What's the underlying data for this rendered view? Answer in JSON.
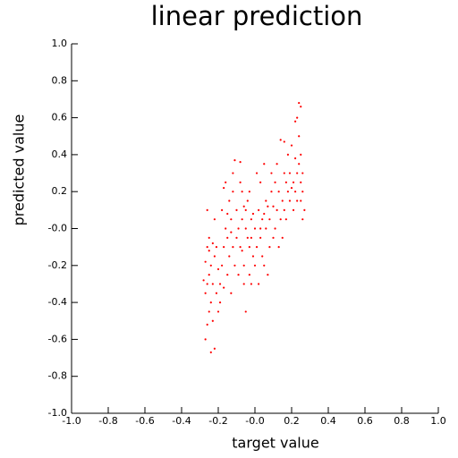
{
  "chart_data": {
    "type": "scatter",
    "title": "linear prediction",
    "xlabel": "target value",
    "ylabel": "predicted value",
    "color": "#ff0000",
    "xlim": [
      -1.0,
      1.0
    ],
    "ylim": [
      -1.0,
      1.0
    ],
    "xticks": [
      {
        "value": -1.0,
        "label": "-1.0"
      },
      {
        "value": -0.8,
        "label": "-0.8"
      },
      {
        "value": -0.6,
        "label": "-0.6"
      },
      {
        "value": -0.4,
        "label": "-0.4"
      },
      {
        "value": -0.2,
        "label": "-0.2"
      },
      {
        "value": 0,
        "label": "-0.0"
      },
      {
        "value": 0.2,
        "label": "0.2"
      },
      {
        "value": 0.4,
        "label": "0.4"
      },
      {
        "value": 0.6,
        "label": "0.6"
      },
      {
        "value": 0.8,
        "label": "0.8"
      },
      {
        "value": 1.0,
        "label": "1.0"
      }
    ],
    "yticks": [
      {
        "value": -1.0,
        "label": "-1.0"
      },
      {
        "value": -0.8,
        "label": "-0.8"
      },
      {
        "value": -0.6,
        "label": "-0.6"
      },
      {
        "value": -0.4,
        "label": "-0.4"
      },
      {
        "value": -0.2,
        "label": "-0.2"
      },
      {
        "value": 0,
        "label": "-0.0"
      },
      {
        "value": 0.2,
        "label": "0.2"
      },
      {
        "value": 0.4,
        "label": "0.4"
      },
      {
        "value": 0.6,
        "label": "0.6"
      },
      {
        "value": 0.8,
        "label": "0.8"
      },
      {
        "value": 1.0,
        "label": "1.0"
      }
    ],
    "x": [
      -0.27,
      -0.26,
      -0.25,
      -0.27,
      -0.26,
      -0.25,
      -0.24,
      -0.27,
      -0.26,
      -0.25,
      -0.26,
      -0.24,
      -0.23,
      -0.22,
      -0.24,
      -0.23,
      -0.22,
      -0.21,
      -0.2,
      -0.22,
      -0.21,
      -0.2,
      -0.23,
      -0.28,
      -0.25,
      -0.19,
      -0.18,
      -0.17,
      -0.16,
      -0.15,
      -0.18,
      -0.17,
      -0.16,
      -0.19,
      -0.15,
      -0.14,
      -0.13,
      -0.12,
      -0.11,
      -0.14,
      -0.12,
      -0.11,
      -0.13,
      -0.1,
      -0.1,
      -0.17,
      -0.15,
      -0.13,
      -0.12,
      -0.09,
      -0.08,
      -0.07,
      -0.06,
      -0.05,
      -0.04,
      -0.08,
      -0.07,
      -0.06,
      -0.05,
      -0.03,
      -0.02,
      -0.01,
      -0.09,
      -0.04,
      -0.03,
      -0.02,
      -0.06,
      -0.01,
      -0.07,
      -0.05,
      -0.03,
      -0.08,
      -0.02,
      0.0,
      0.01,
      0.02,
      0.03,
      0.04,
      0.05,
      0.06,
      0.07,
      0.08,
      0.09,
      0.01,
      0.03,
      0.05,
      0.02,
      0.04,
      0.06,
      0.08,
      0.1,
      0.0,
      0.07,
      0.03,
      0.09,
      0.05,
      0.1,
      0.11,
      0.12,
      0.13,
      0.14,
      0.15,
      0.16,
      0.17,
      0.18,
      0.19,
      0.12,
      0.14,
      0.16,
      0.13,
      0.15,
      0.17,
      0.18,
      0.19,
      0.2,
      0.11,
      0.16,
      0.21,
      0.22,
      0.23,
      0.24,
      0.25,
      0.26,
      0.22,
      0.23,
      0.24,
      0.25,
      0.21,
      0.23,
      0.25,
      0.26,
      0.27,
      0.24,
      0.22,
      0.2,
      0.26,
      0.25
    ],
    "values": [
      -0.6,
      -0.52,
      -0.45,
      -0.35,
      -0.3,
      -0.25,
      -0.2,
      -0.18,
      -0.1,
      -0.05,
      0.1,
      -0.4,
      -0.5,
      -0.65,
      -0.67,
      -0.3,
      -0.15,
      -0.1,
      -0.22,
      0.05,
      -0.35,
      -0.45,
      -0.08,
      -0.28,
      -0.12,
      -0.3,
      -0.2,
      -0.1,
      0.0,
      -0.05,
      0.1,
      0.22,
      0.25,
      -0.4,
      -0.25,
      -0.15,
      0.05,
      -0.1,
      -0.2,
      0.15,
      0.3,
      0.37,
      -0.35,
      -0.05,
      0.1,
      -0.32,
      0.08,
      -0.02,
      0.2,
      0.0,
      -0.1,
      0.05,
      -0.2,
      0.1,
      -0.05,
      0.36,
      0.2,
      -0.3,
      -0.45,
      -0.1,
      0.05,
      -0.15,
      -0.25,
      0.15,
      -0.25,
      -0.05,
      0.12,
      0.08,
      -0.12,
      0.0,
      0.2,
      0.25,
      -0.3,
      0.0,
      -0.1,
      0.1,
      -0.05,
      0.05,
      -0.2,
      0.0,
      0.12,
      -0.1,
      0.2,
      0.3,
      0.25,
      0.35,
      -0.3,
      -0.15,
      0.15,
      0.05,
      -0.05,
      -0.2,
      -0.25,
      0.0,
      0.3,
      0.08,
      0.12,
      0.0,
      0.1,
      0.2,
      0.05,
      0.15,
      0.1,
      0.25,
      0.2,
      0.3,
      0.35,
      0.48,
      0.47,
      -0.1,
      -0.05,
      0.05,
      0.4,
      0.15,
      0.22,
      0.25,
      0.3,
      0.25,
      0.2,
      0.3,
      0.35,
      0.25,
      0.3,
      0.58,
      0.6,
      0.68,
      0.66,
      0.1,
      0.15,
      0.4,
      0.2,
      0.1,
      0.5,
      0.38,
      0.45,
      0.05,
      0.15
    ]
  }
}
